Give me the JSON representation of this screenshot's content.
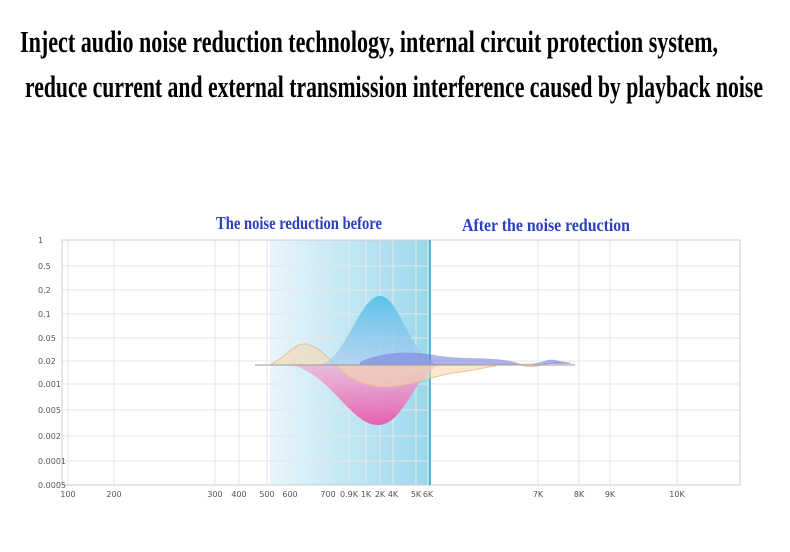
{
  "header": {
    "lines": [
      "Inject audio noise reduction technology, internal circuit protection system,",
      "reduce current and external transmission interference caused by playback noise"
    ]
  },
  "captions": {
    "before": "The noise reduction before",
    "after": "After the noise reduction"
  },
  "y_axis_labels": [
    "1",
    "0.5",
    "0.2",
    "0.1",
    "0.05",
    "0.02",
    "0.001",
    "0.005",
    "0.002",
    "0.0001",
    "0.0005"
  ],
  "x_axis_labels": [
    "100",
    "200",
    "300",
    "400",
    "500",
    "600",
    "700",
    "0.9K",
    "1K",
    "2K",
    "4K",
    "5K",
    "6K",
    "7K",
    "8K",
    "9K",
    "10K"
  ]
}
